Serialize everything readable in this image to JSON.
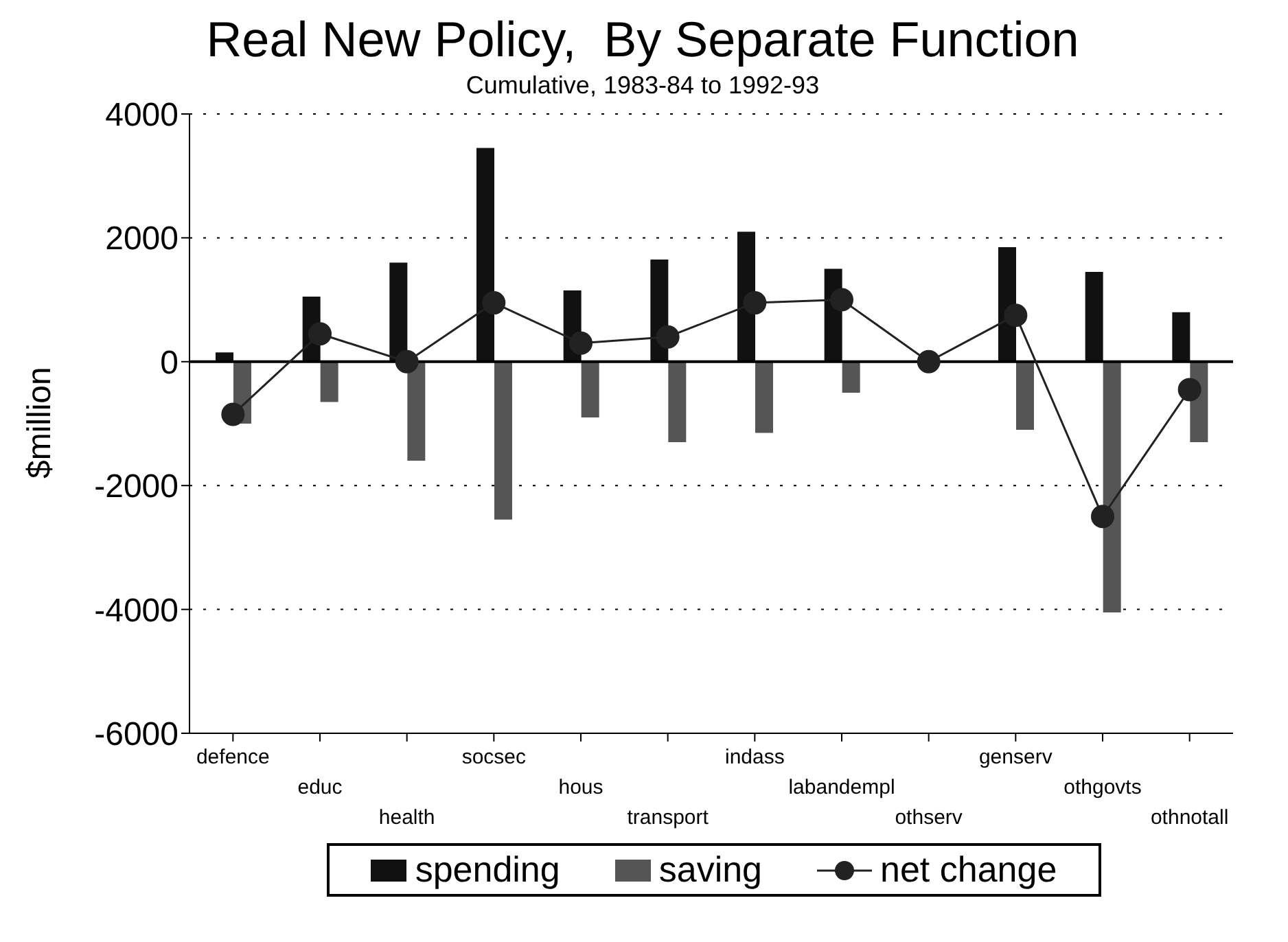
{
  "chart_data": {
    "type": "bar",
    "title": "Real New Policy,  By Separate Function",
    "subtitle": "Cumulative, 1983-84 to 1992-93",
    "ylabel": "$million",
    "categories": [
      "defence",
      "educ",
      "health",
      "socsec",
      "hous",
      "transport",
      "indass",
      "labandempl",
      "othserv",
      "genserv",
      "othgovts",
      "othnotall"
    ],
    "series": [
      {
        "name": "spending",
        "color": "#111111",
        "values": [
          150,
          1050,
          1600,
          3450,
          1150,
          1650,
          2100,
          1500,
          0,
          1850,
          1450,
          800
        ]
      },
      {
        "name": "saving",
        "color": "#555555",
        "values": [
          -1000,
          -650,
          -1600,
          -2550,
          -900,
          -1300,
          -1150,
          -500,
          0,
          -1100,
          -4050,
          -1300
        ]
      },
      {
        "name": "net change",
        "type": "line",
        "color": "#222222",
        "values": [
          -850,
          450,
          0,
          950,
          300,
          400,
          950,
          1000,
          0,
          750,
          -2500,
          -450
        ]
      }
    ],
    "ylim": [
      -6000,
      4000
    ],
    "yticks": [
      -6000,
      -4000,
      -2000,
      0,
      2000,
      4000
    ],
    "grid": "y",
    "legend": "bottom",
    "marker": "circle",
    "line_style": "solid"
  }
}
